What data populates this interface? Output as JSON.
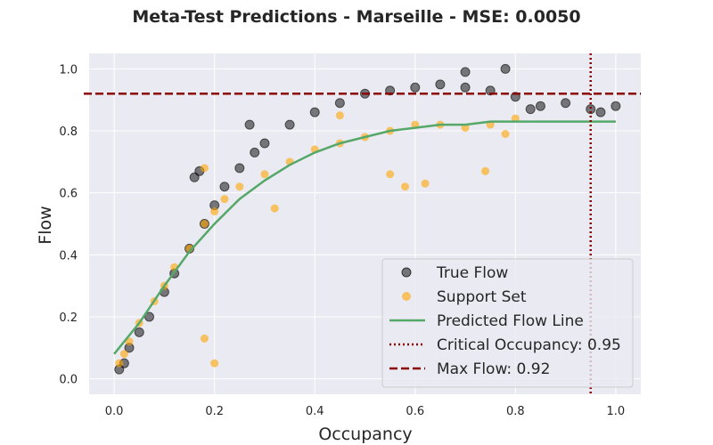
{
  "chart_data": {
    "type": "scatter",
    "title": "Meta-Test Predictions - Marseille - MSE: 0.0050",
    "xlabel": "Occupancy",
    "ylabel": "Flow",
    "xlim": [
      -0.05,
      1.05
    ],
    "ylim": [
      -0.05,
      1.05
    ],
    "x_ticks": [
      "0.0",
      "0.2",
      "0.4",
      "0.6",
      "0.8",
      "1.0"
    ],
    "y_ticks": [
      "0.0",
      "0.2",
      "0.4",
      "0.6",
      "0.8",
      "1.0"
    ],
    "grid": true,
    "legend_position": "lower-right",
    "colors": {
      "true_flow": "#000000",
      "support_set": "#ffa500",
      "predicted_line": "#55a868",
      "critical_line": "#8b0000",
      "max_flow_line": "#8b0000",
      "plot_background": "#eaeaf2",
      "grid": "#ffffff"
    },
    "series": [
      {
        "name": "True Flow",
        "kind": "scatter",
        "description": "dense cloud rising from (0.0, 0.0) to about (0.6, 0.9), then flattening with sparse points to x=1.0",
        "points": [
          [
            0.01,
            0.03
          ],
          [
            0.02,
            0.05
          ],
          [
            0.03,
            0.1
          ],
          [
            0.05,
            0.15
          ],
          [
            0.07,
            0.2
          ],
          [
            0.1,
            0.28
          ],
          [
            0.12,
            0.34
          ],
          [
            0.15,
            0.42
          ],
          [
            0.18,
            0.5
          ],
          [
            0.2,
            0.56
          ],
          [
            0.22,
            0.62
          ],
          [
            0.25,
            0.68
          ],
          [
            0.28,
            0.73
          ],
          [
            0.3,
            0.76
          ],
          [
            0.35,
            0.82
          ],
          [
            0.4,
            0.86
          ],
          [
            0.45,
            0.89
          ],
          [
            0.5,
            0.92
          ],
          [
            0.55,
            0.93
          ],
          [
            0.6,
            0.94
          ],
          [
            0.65,
            0.95
          ],
          [
            0.7,
            0.94
          ],
          [
            0.75,
            0.93
          ],
          [
            0.8,
            0.91
          ],
          [
            0.85,
            0.88
          ],
          [
            0.9,
            0.89
          ],
          [
            0.95,
            0.87
          ],
          [
            0.97,
            0.86
          ],
          [
            1.0,
            0.88
          ],
          [
            0.16,
            0.65
          ],
          [
            0.17,
            0.67
          ],
          [
            0.27,
            0.82
          ],
          [
            0.78,
            1.0
          ],
          [
            0.7,
            0.99
          ],
          [
            0.83,
            0.87
          ]
        ]
      },
      {
        "name": "Support Set",
        "kind": "scatter",
        "description": "orange points following the lower part of the cloud, rising from (0.02, 0.0) to a plateau near 0.82",
        "points": [
          [
            0.01,
            0.05
          ],
          [
            0.02,
            0.08
          ],
          [
            0.03,
            0.12
          ],
          [
            0.05,
            0.18
          ],
          [
            0.08,
            0.25
          ],
          [
            0.1,
            0.3
          ],
          [
            0.12,
            0.36
          ],
          [
            0.15,
            0.42
          ],
          [
            0.18,
            0.5
          ],
          [
            0.2,
            0.54
          ],
          [
            0.22,
            0.58
          ],
          [
            0.25,
            0.62
          ],
          [
            0.3,
            0.66
          ],
          [
            0.35,
            0.7
          ],
          [
            0.4,
            0.74
          ],
          [
            0.45,
            0.76
          ],
          [
            0.5,
            0.78
          ],
          [
            0.55,
            0.8
          ],
          [
            0.6,
            0.82
          ],
          [
            0.65,
            0.82
          ],
          [
            0.7,
            0.81
          ],
          [
            0.75,
            0.82
          ],
          [
            0.78,
            0.79
          ],
          [
            0.8,
            0.84
          ],
          [
            0.18,
            0.68
          ],
          [
            0.2,
            0.05
          ],
          [
            0.18,
            0.13
          ],
          [
            0.55,
            0.66
          ],
          [
            0.58,
            0.62
          ],
          [
            0.62,
            0.63
          ],
          [
            0.74,
            0.67
          ],
          [
            0.32,
            0.55
          ],
          [
            0.45,
            0.85
          ]
        ]
      },
      {
        "name": "Predicted Flow Line",
        "kind": "line",
        "x": [
          0.0,
          0.05,
          0.1,
          0.15,
          0.2,
          0.25,
          0.3,
          0.35,
          0.4,
          0.45,
          0.5,
          0.55,
          0.6,
          0.65,
          0.7,
          0.75,
          0.8,
          0.85,
          0.9,
          0.95,
          1.0
        ],
        "y": [
          0.08,
          0.18,
          0.3,
          0.41,
          0.5,
          0.58,
          0.64,
          0.69,
          0.73,
          0.76,
          0.78,
          0.8,
          0.81,
          0.82,
          0.82,
          0.83,
          0.83,
          0.83,
          0.83,
          0.83,
          0.83
        ]
      },
      {
        "name": "Critical Occupancy: 0.95",
        "kind": "vline",
        "x": 0.95
      },
      {
        "name": "Max Flow: 0.92",
        "kind": "hline",
        "y": 0.92
      }
    ]
  }
}
